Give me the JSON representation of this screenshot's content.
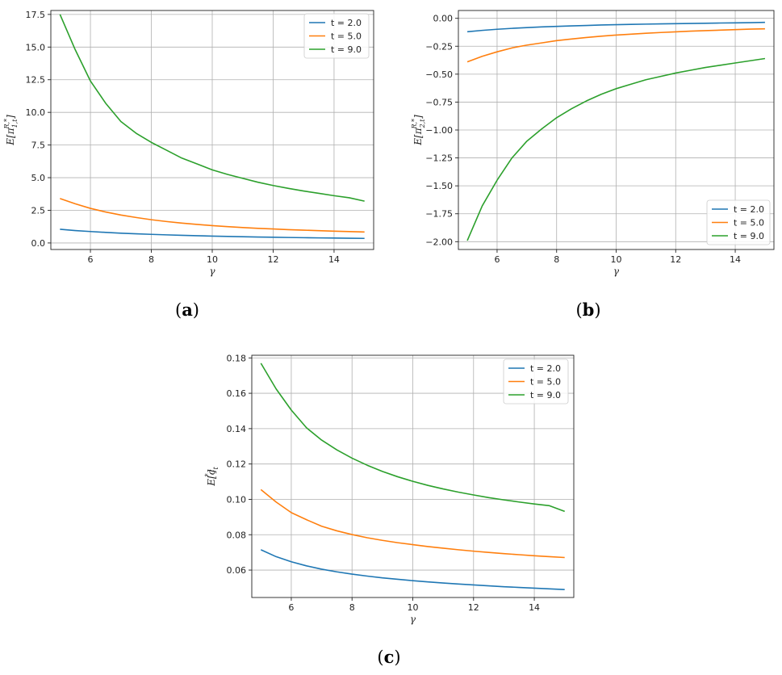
{
  "chart_data": [
    {
      "panel": "a",
      "panel_label": "a",
      "type": "line",
      "xlabel": "γ",
      "ylabel": "E[π",
      "ylabel_sub": "1,t",
      "ylabel_sup": "R,*",
      "ylabel_close": "]",
      "xlim": [
        4.7,
        15.3
      ],
      "ylim": [
        -0.5,
        17.8
      ],
      "xticks": [
        6,
        8,
        10,
        12,
        14
      ],
      "xtick_labels": [
        "6",
        "8",
        "10",
        "12",
        "14"
      ],
      "yticks": [
        0,
        2.5,
        5,
        7.5,
        10,
        12.5,
        15,
        17.5
      ],
      "ytick_labels": [
        "0.0",
        "2.5",
        "5.0",
        "7.5",
        "10.0",
        "12.5",
        "15.0",
        "17.5"
      ],
      "grid": true,
      "legend_position": "top-right",
      "x": [
        5,
        5.5,
        6,
        6.5,
        7,
        7.5,
        8,
        8.5,
        9,
        9.5,
        10,
        10.5,
        11,
        11.5,
        12,
        12.5,
        13,
        13.5,
        14,
        14.5,
        15
      ],
      "series": [
        {
          "name": "t = 2.0",
          "color": "#1f77b4",
          "values": [
            1.05,
            0.95,
            0.875,
            0.81,
            0.75,
            0.7,
            0.66,
            0.62,
            0.585,
            0.555,
            0.525,
            0.5,
            0.477,
            0.457,
            0.438,
            0.42,
            0.404,
            0.389,
            0.375,
            0.362,
            0.35
          ]
        },
        {
          "name": "t = 5.0",
          "color": "#ff7f0e",
          "values": [
            3.4,
            3.0,
            2.65,
            2.37,
            2.14,
            1.95,
            1.78,
            1.64,
            1.52,
            1.42,
            1.33,
            1.25,
            1.18,
            1.12,
            1.07,
            1.02,
            0.98,
            0.94,
            0.9,
            0.87,
            0.84
          ]
        },
        {
          "name": "t = 9.0",
          "color": "#2ca02c",
          "values": [
            17.5,
            14.8,
            12.4,
            10.7,
            9.3,
            8.4,
            7.7,
            7.1,
            6.5,
            6.05,
            5.6,
            5.25,
            4.95,
            4.65,
            4.4,
            4.18,
            3.98,
            3.8,
            3.62,
            3.46,
            3.2
          ]
        }
      ]
    },
    {
      "panel": "b",
      "panel_label": "b",
      "type": "line",
      "xlabel": "γ",
      "ylabel": "E[π",
      "ylabel_sub": "2,t",
      "ylabel_sup": "R,*",
      "ylabel_close": "]",
      "xlim": [
        4.7,
        15.3
      ],
      "ylim": [
        -2.07,
        0.07
      ],
      "xticks": [
        6,
        8,
        10,
        12,
        14
      ],
      "xtick_labels": [
        "6",
        "8",
        "10",
        "12",
        "14"
      ],
      "yticks": [
        0,
        -0.25,
        -0.5,
        -0.75,
        -1,
        -1.25,
        -1.5,
        -1.75,
        -2
      ],
      "ytick_labels": [
        "0.00",
        "−0.25",
        "−0.50",
        "−0.75",
        "−1.00",
        "−1.25",
        "−1.50",
        "−1.75",
        "−2.00"
      ],
      "grid": true,
      "legend_position": "bottom-right",
      "x": [
        5,
        5.5,
        6,
        6.5,
        7,
        7.5,
        8,
        8.5,
        9,
        9.5,
        10,
        10.5,
        11,
        11.5,
        12,
        12.5,
        13,
        13.5,
        14,
        14.5,
        15
      ],
      "series": [
        {
          "name": "t = 2.0",
          "color": "#1f77b4",
          "values": [
            -0.12,
            -0.108,
            -0.098,
            -0.09,
            -0.083,
            -0.077,
            -0.072,
            -0.068,
            -0.064,
            -0.06,
            -0.057,
            -0.054,
            -0.052,
            -0.05,
            -0.048,
            -0.046,
            -0.044,
            -0.042,
            -0.041,
            -0.039,
            -0.036
          ]
        },
        {
          "name": "t = 5.0",
          "color": "#ff7f0e",
          "values": [
            -0.39,
            -0.34,
            -0.3,
            -0.265,
            -0.24,
            -0.22,
            -0.2,
            -0.185,
            -0.172,
            -0.16,
            -0.15,
            -0.142,
            -0.134,
            -0.127,
            -0.121,
            -0.115,
            -0.11,
            -0.106,
            -0.101,
            -0.097,
            -0.094
          ]
        },
        {
          "name": "t = 9.0",
          "color": "#2ca02c",
          "values": [
            -1.99,
            -1.68,
            -1.45,
            -1.25,
            -1.1,
            -0.99,
            -0.89,
            -0.81,
            -0.74,
            -0.68,
            -0.63,
            -0.59,
            -0.55,
            -0.52,
            -0.49,
            -0.465,
            -0.44,
            -0.42,
            -0.4,
            -0.38,
            -0.36
          ]
        }
      ]
    },
    {
      "panel": "c",
      "panel_label": "c",
      "type": "line",
      "xlabel": "γ",
      "ylabel": "E[c",
      "ylabel_sub": "t",
      "ylabel_sup": "*",
      "ylabel_close": "]",
      "xlim": [
        4.7,
        15.3
      ],
      "ylim": [
        0.0445,
        0.1815
      ],
      "xticks": [
        6,
        8,
        10,
        12,
        14
      ],
      "xtick_labels": [
        "6",
        "8",
        "10",
        "12",
        "14"
      ],
      "yticks": [
        0.06,
        0.08,
        0.1,
        0.12,
        0.14,
        0.16,
        0.18
      ],
      "ytick_labels": [
        "0.06",
        "0.08",
        "0.10",
        "0.12",
        "0.14",
        "0.16",
        "0.18"
      ],
      "grid": true,
      "legend_position": "top-right",
      "x": [
        5,
        5.5,
        6,
        6.5,
        7,
        7.5,
        8,
        8.5,
        9,
        9.5,
        10,
        10.5,
        11,
        11.5,
        12,
        12.5,
        13,
        13.5,
        14,
        14.5,
        15
      ],
      "series": [
        {
          "name": "t = 2.0",
          "color": "#1f77b4",
          "values": [
            0.0715,
            0.0676,
            0.0647,
            0.0624,
            0.0605,
            0.059,
            0.0577,
            0.0566,
            0.0556,
            0.0548,
            0.054,
            0.0533,
            0.0527,
            0.0521,
            0.0516,
            0.0511,
            0.0506,
            0.0502,
            0.0498,
            0.0494,
            0.049
          ]
        },
        {
          "name": "t = 5.0",
          "color": "#ff7f0e",
          "values": [
            0.1055,
            0.0985,
            0.0925,
            0.0885,
            0.0848,
            0.0822,
            0.0801,
            0.0783,
            0.0768,
            0.0755,
            0.0744,
            0.0733,
            0.0724,
            0.0715,
            0.0707,
            0.07,
            0.0693,
            0.0687,
            0.0681,
            0.0676,
            0.0671
          ]
        },
        {
          "name": "t = 9.0",
          "color": "#2ca02c",
          "values": [
            0.177,
            0.1625,
            0.1505,
            0.1405,
            0.1335,
            0.128,
            0.1233,
            0.1193,
            0.1158,
            0.1128,
            0.1102,
            0.1079,
            0.1059,
            0.1041,
            0.1025,
            0.101,
            0.0997,
            0.0985,
            0.0974,
            0.0964,
            0.0932
          ]
        }
      ]
    }
  ]
}
